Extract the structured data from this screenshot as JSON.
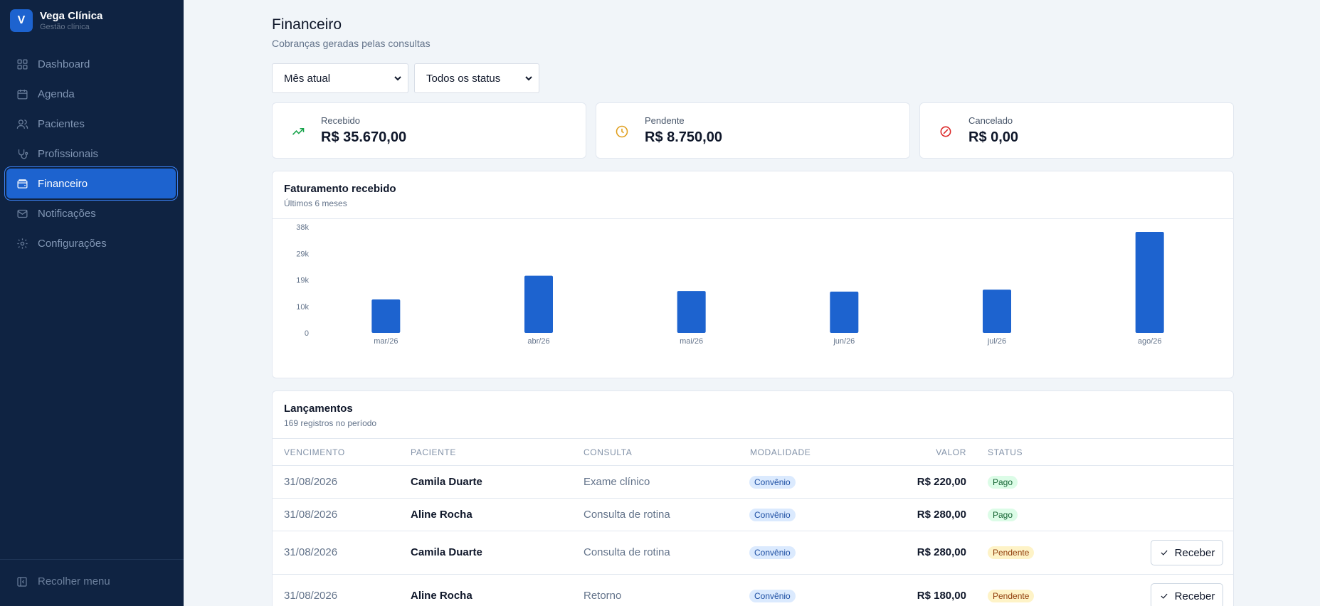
{
  "brand": {
    "initial": "V",
    "name": "Vega Clínica",
    "subtitle": "Gestão clínica"
  },
  "sidebar": {
    "items": [
      {
        "label": "Dashboard",
        "icon": "grid-icon"
      },
      {
        "label": "Agenda",
        "icon": "calendar-icon"
      },
      {
        "label": "Pacientes",
        "icon": "users-icon"
      },
      {
        "label": "Profissionais",
        "icon": "stethoscope-icon"
      },
      {
        "label": "Financeiro",
        "icon": "wallet-icon",
        "active": true
      },
      {
        "label": "Notificações",
        "icon": "mail-icon"
      },
      {
        "label": "Configurações",
        "icon": "gear-icon"
      }
    ],
    "collapse_label": "Recolher menu"
  },
  "page": {
    "title": "Financeiro",
    "subtitle": "Cobranças geradas pelas consultas"
  },
  "filters": {
    "period": "Mês atual",
    "status": "Todos os status"
  },
  "kpis": [
    {
      "label": "Recebido",
      "value": "R$ 35.670,00",
      "icon": "trending-up-icon",
      "color": "#16a34a"
    },
    {
      "label": "Pendente",
      "value": "R$ 8.750,00",
      "icon": "clock-icon",
      "color": "#e0a020"
    },
    {
      "label": "Cancelado",
      "value": "R$ 0,00",
      "icon": "ban-icon",
      "color": "#dc2626"
    }
  ],
  "chart": {
    "title": "Faturamento recebido",
    "subtitle": "Últimos 6 meses"
  },
  "chart_data": {
    "type": "bar",
    "categories": [
      "mar/26",
      "abr/26",
      "mai/26",
      "jun/26",
      "jul/26",
      "ago/26"
    ],
    "values": [
      12000,
      20500,
      15000,
      14800,
      15500,
      36200
    ],
    "yticks": [
      "38k",
      "29k",
      "19k",
      "10k",
      "0"
    ],
    "ylim": [
      0,
      38000
    ],
    "color": "#1d63cf",
    "grid": false
  },
  "table": {
    "title": "Lançamentos",
    "subtitle": "169 registros no período",
    "headers": {
      "date": "VENCIMENTO",
      "patient": "PACIENTE",
      "consult": "CONSULTA",
      "mode": "MODALIDADE",
      "value": "VALOR",
      "status": "STATUS"
    },
    "action_label": "Receber",
    "rows": [
      {
        "date": "31/08/2026",
        "patient": "Camila Duarte",
        "consult": "Exame clínico",
        "mode": "Convênio",
        "value": "R$ 220,00",
        "status": "Pago"
      },
      {
        "date": "31/08/2026",
        "patient": "Aline Rocha",
        "consult": "Consulta de rotina",
        "mode": "Convênio",
        "value": "R$ 280,00",
        "status": "Pago"
      },
      {
        "date": "31/08/2026",
        "patient": "Camila Duarte",
        "consult": "Consulta de rotina",
        "mode": "Convênio",
        "value": "R$ 280,00",
        "status": "Pendente"
      },
      {
        "date": "31/08/2026",
        "patient": "Aline Rocha",
        "consult": "Retorno",
        "mode": "Convênio",
        "value": "R$ 180,00",
        "status": "Pendente"
      }
    ]
  }
}
